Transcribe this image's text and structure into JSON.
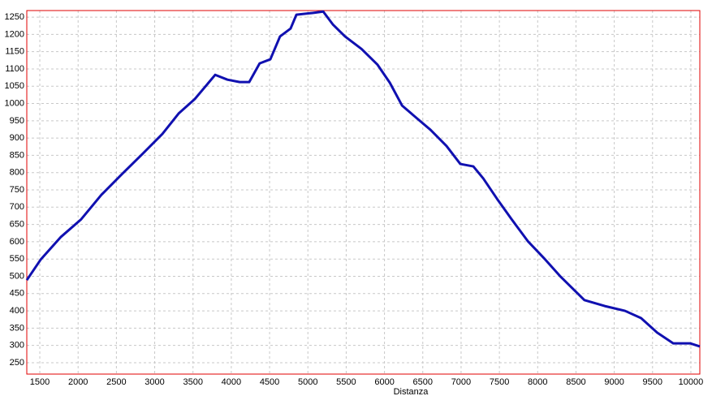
{
  "chart_data": {
    "type": "line",
    "x_label": "Distanza",
    "x": [
      1330,
      1510,
      1776,
      2040,
      2305,
      2570,
      2835,
      3100,
      3312,
      3524,
      3790,
      3950,
      4110,
      4234,
      4370,
      4510,
      4636,
      4774,
      4850,
      5060,
      5200,
      5325,
      5485,
      5700,
      5910,
      6070,
      6230,
      6440,
      6600,
      6810,
      6990,
      7160,
      7290,
      7470,
      7660,
      7870,
      8080,
      8290,
      8450,
      8610,
      8875,
      9140,
      9350,
      9560,
      9770,
      9990,
      10117
    ],
    "series": [
      {
        "color": "#1010b0",
        "values": [
          489,
          548,
          614,
          665,
          736,
          795,
          853,
          912,
          971,
          1013,
          1083,
          1069,
          1062,
          1062,
          1116,
          1128,
          1194,
          1217,
          1257,
          1262,
          1266,
          1229,
          1194,
          1158,
          1112,
          1060,
          994,
          954,
          924,
          877,
          825,
          818,
          783,
          724,
          665,
          602,
          553,
          501,
          466,
          431,
          414,
          400,
          379,
          337,
          306,
          306,
          297
        ]
      }
    ],
    "xlim": [
      1330,
      10117
    ],
    "ylim": [
      217,
      1269
    ],
    "xticks": [
      1500,
      2000,
      2500,
      3000,
      3500,
      4000,
      4500,
      5000,
      5500,
      6000,
      6500,
      7000,
      7500,
      8000,
      8500,
      9000,
      9500,
      10000
    ],
    "yticks": [
      250,
      300,
      350,
      400,
      450,
      500,
      550,
      600,
      650,
      700,
      750,
      800,
      850,
      900,
      950,
      1000,
      1050,
      1100,
      1150,
      1200,
      1250
    ],
    "grid": true
  }
}
